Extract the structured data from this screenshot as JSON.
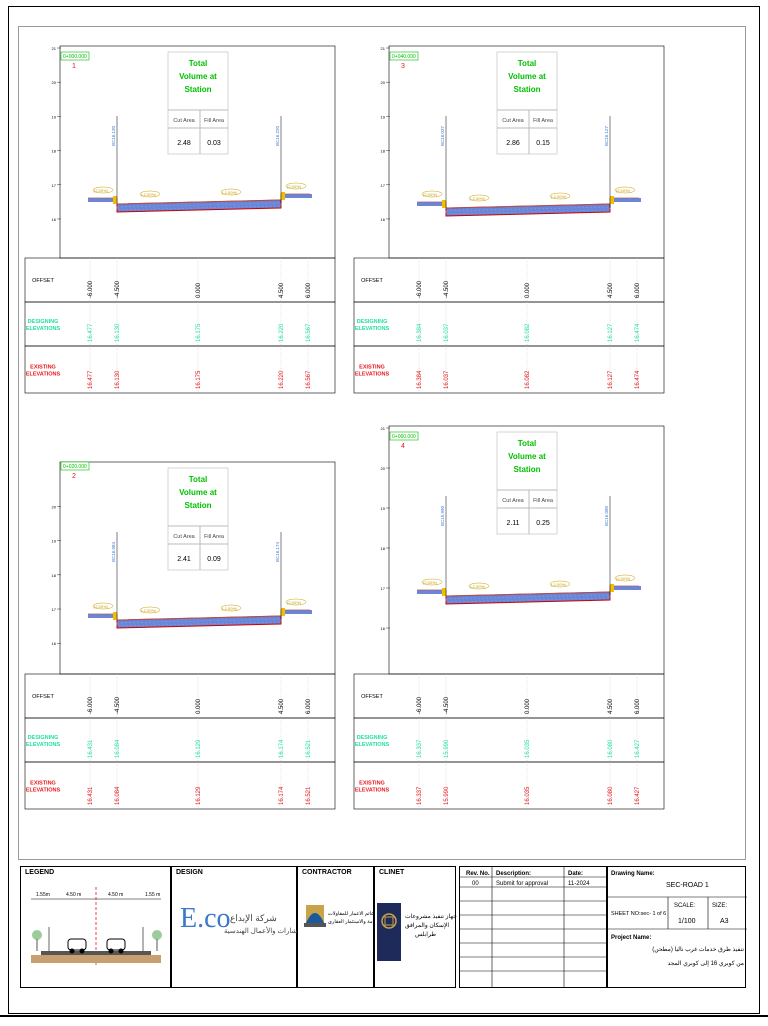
{
  "sections": [
    {
      "station": "0+000.000",
      "index": "1",
      "cut_label": "Cut Area",
      "fill_label": "Fill Area",
      "cut": "2.48",
      "fill": "0.03",
      "vol_title": [
        "Total",
        "Volume at",
        "Station"
      ],
      "left_cl": "16.130",
      "right_cl": "16.220",
      "left_end": "16.477",
      "right_end": "16.567",
      "offsets": [
        "-6.000",
        "-4.500",
        "0.000",
        "4.500",
        "6.000"
      ],
      "design": [
        "16.477",
        "16.130",
        "16.175",
        "16.220",
        "16.567"
      ],
      "existing": [
        "16.477",
        "16.130",
        "16.175",
        "16.220",
        "16.567"
      ],
      "y_ticks": [
        "21",
        "20",
        "19",
        "18",
        "17",
        "16"
      ]
    },
    {
      "station": "0+040.000",
      "index": "3",
      "cut_label": "Cut Area",
      "fill_label": "Fill Area",
      "cut": "2.86",
      "fill": "0.15",
      "vol_title": [
        "Total",
        "Volume at",
        "Station"
      ],
      "left_cl": "16.037",
      "right_cl": "16.127",
      "left_end": "16.384",
      "right_end": "16.474",
      "offsets": [
        "-6.000",
        "-4.500",
        "0.000",
        "4.500",
        "6.000"
      ],
      "design": [
        "16.384",
        "16.037",
        "16.082",
        "16.127",
        "16.474"
      ],
      "existing": [
        "16.384",
        "16.037",
        "16.082",
        "16.127",
        "16.474"
      ],
      "y_ticks": [
        "21",
        "20",
        "19",
        "18",
        "17",
        "16"
      ]
    },
    {
      "station": "0+020.000",
      "index": "2",
      "cut_label": "Cut Area",
      "fill_label": "Fill Area",
      "cut": "2.41",
      "fill": "0.09",
      "vol_title": [
        "Total",
        "Volume at",
        "Station"
      ],
      "left_cl": "16.084",
      "right_cl": "16.174",
      "left_end": "16.431",
      "right_end": "16.521",
      "offsets": [
        "-6.000",
        "-4.500",
        "0.000",
        "4.500",
        "6.000"
      ],
      "design": [
        "16.431",
        "16.084",
        "16.129",
        "16.174",
        "16.521"
      ],
      "existing": [
        "16.431",
        "16.084",
        "16.129",
        "16.174",
        "16.521"
      ],
      "y_ticks": [
        "20",
        "19",
        "18",
        "17",
        "16"
      ]
    },
    {
      "station": "0+060.000",
      "index": "4",
      "cut_label": "Cut Area",
      "fill_label": "Fill Area",
      "cut": "2.11",
      "fill": "0.25",
      "vol_title": [
        "Total",
        "Volume at",
        "Station"
      ],
      "left_cl": "15.990",
      "right_cl": "16.080",
      "left_end": "16.337",
      "right_end": "16.427",
      "offsets": [
        "-6.000",
        "-4.500",
        "0.000",
        "4.500",
        "6.000"
      ],
      "design": [
        "16.337",
        "15.990",
        "16.035",
        "16.080",
        "16.427"
      ],
      "existing": [
        "16.337",
        "15.990",
        "16.035",
        "16.080",
        "16.427"
      ],
      "y_ticks": [
        "21",
        "20",
        "19",
        "18",
        "17",
        "16"
      ]
    }
  ],
  "row_labels": {
    "offset": "OFFSET",
    "designing": [
      "DESIGNING",
      "ELEVATIONS"
    ],
    "existing": [
      "EXISTING",
      "ELEVATIONS"
    ]
  },
  "slope_labels": {
    "side": "(2.00%)",
    "lane": "(-2.00%)"
  },
  "title_block": {
    "legend": {
      "head": "LEGEND",
      "dims": [
        "1.55m",
        "4.50 m",
        "4.50 m",
        "1.55 m"
      ]
    },
    "design": {
      "head": "DESIGN",
      "company_ar": "شركة الإبداع",
      "company_ar2": "للاستشارات والأعمال الهندسية",
      "logo": "E.co"
    },
    "contractor": {
      "head": "CONTRACTOR",
      "text_ar": "شركة دعائم الاعمار للمقاولات",
      "text_ar2": "العامة والاستثمار العقاري"
    },
    "client": {
      "head": "CLINET",
      "text_ar": "جهاز تنفيذ مشروعات",
      "text_ar2": "الإسكان والمرافق",
      "text_ar3": "طرابلس"
    },
    "revisions": {
      "headers": [
        "Rev. No.",
        "Description:",
        "Date:"
      ],
      "rows": [
        [
          "00",
          "Submit for approval",
          "11-2024"
        ]
      ]
    },
    "drawing": {
      "name_label": "Drawing Name:",
      "name": "SEC-ROAD 1",
      "sheet_label": "SHEET NO:sec- 1 of 6",
      "scale_label": "SCALE:",
      "scale": "1/100",
      "size_label": "SIZE:",
      "size": "A3",
      "project_label": "Project Name:",
      "project_ar1": "تنفيذ طرق خدمات غرب ناليا (مطحن)",
      "project_ar2": "من كوبري 16 إلى كوبري المجد"
    }
  },
  "colors": {
    "red": "#e8181c",
    "green": "#22e0a0",
    "station_green": "#00c000",
    "road_blue": "#6a86d8",
    "road_red": "#cc0000"
  }
}
